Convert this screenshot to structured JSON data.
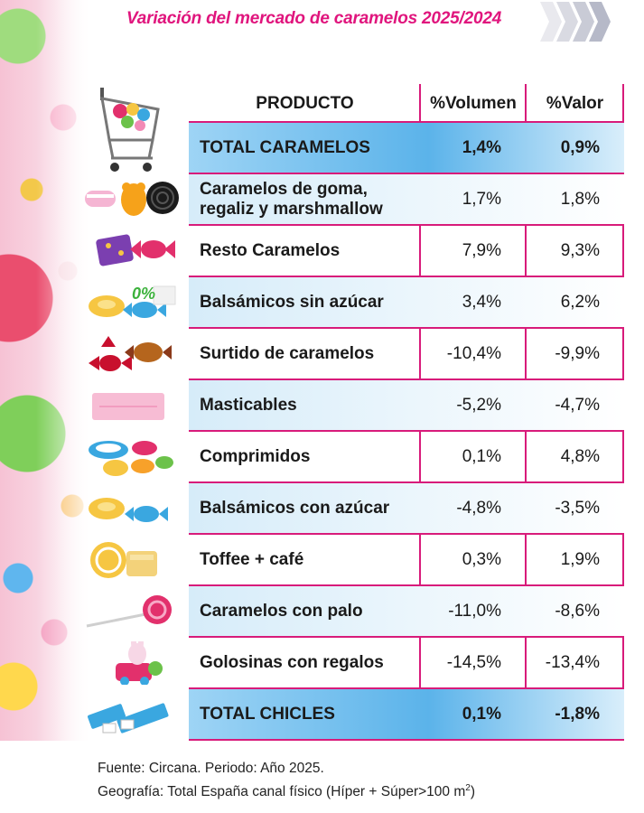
{
  "title": "Variación del mercado de caramelos 2025/2024",
  "colors": {
    "accent": "#d81b7a",
    "title": "#e0157d",
    "total_row": "#5bb3ea",
    "alt_row": "#d6ecf9"
  },
  "chart_data": {
    "type": "table",
    "columns": [
      "PRODUCTO",
      "%Volumen",
      "%Valor"
    ],
    "rows": [
      {
        "producto": "TOTAL CARAMELOS",
        "volumen": "1,4%",
        "valor": "0,9%",
        "total": true,
        "icon": "shopping-cart-icon"
      },
      {
        "producto": "Caramelos de goma, regaliz y marshmallow",
        "volumen": "1,7%",
        "valor": "1,8%",
        "total": false,
        "icon": "gummy-bear-icon"
      },
      {
        "producto": "Resto Caramelos",
        "volumen": "7,9%",
        "valor": "9,3%",
        "total": false,
        "icon": "wrapped-candy-icon"
      },
      {
        "producto": "Balsámicos sin azúcar",
        "volumen": "3,4%",
        "valor": "6,2%",
        "total": false,
        "icon": "sugar-free-candy-icon"
      },
      {
        "producto": "Surtido de caramelos",
        "volumen": "-10,4%",
        "valor": "-9,9%",
        "total": false,
        "icon": "assorted-candy-icon"
      },
      {
        "producto": "Masticables",
        "volumen": "-5,2%",
        "valor": "-4,7%",
        "total": false,
        "icon": "chewy-stick-icon"
      },
      {
        "producto": "Comprimidos",
        "volumen": "0,1%",
        "valor": "4,8%",
        "total": false,
        "icon": "tablets-icon"
      },
      {
        "producto": "Balsámicos con azúcar",
        "volumen": "-4,8%",
        "valor": "-3,5%",
        "total": false,
        "icon": "balsamic-candy-icon"
      },
      {
        "producto": "Toffee + café",
        "volumen": "0,3%",
        "valor": "1,9%",
        "total": false,
        "icon": "toffee-icon"
      },
      {
        "producto": "Caramelos con palo",
        "volumen": "-11,0%",
        "valor": "-8,6%",
        "total": false,
        "icon": "lollipop-icon"
      },
      {
        "producto": "Golosinas con regalos",
        "volumen": "-14,5%",
        "valor": "-13,4%",
        "total": false,
        "icon": "toy-candy-icon"
      },
      {
        "producto": "TOTAL CHICLES",
        "volumen": "0,1%",
        "valor": "-1,8%",
        "total": true,
        "icon": "chewing-gum-icon"
      }
    ]
  },
  "source": {
    "line1": "Fuente: Circana. Periodo: Año 2025.",
    "line2": "Geografía: Total España canal físico (Híper + Súper>100 m",
    "line2_sup": "2",
    "line2_end": ")"
  }
}
